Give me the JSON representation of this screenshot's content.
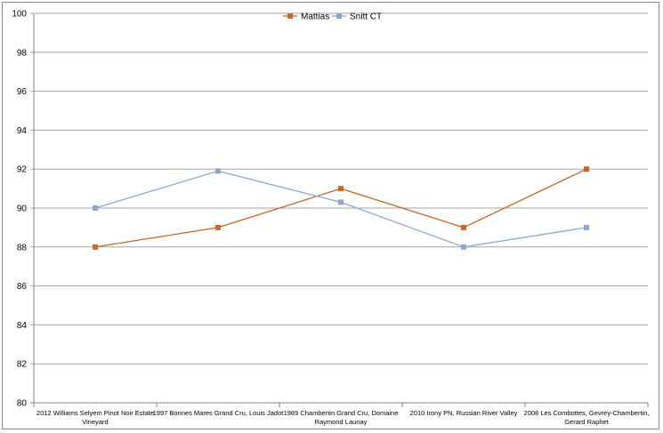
{
  "chart_data": {
    "type": "line",
    "categories": [
      [
        "2012 Williams Selyem Pinot Noir Estate",
        "Vineyard"
      ],
      [
        "1997 Bonnes Mares Grand Cru, Louis Jadot"
      ],
      [
        "1989 Chambertin Grand Cru, Domaine",
        "Raymond Launay"
      ],
      [
        "2010 Irony PN, Russian River Valley"
      ],
      [
        "2008 Les Combottes, Gevrey-Chambertin,",
        "Gerard Raphet"
      ]
    ],
    "series": [
      {
        "name": "Mattias",
        "color": "#c0692f",
        "marker_color": "#c8692a",
        "values": [
          88,
          89,
          91,
          89,
          92
        ]
      },
      {
        "name": "Snitt CT",
        "color": "#8faad0",
        "marker_color": "#8ea6cc",
        "values": [
          90,
          91.9,
          90.3,
          88,
          89
        ]
      }
    ],
    "ylim": [
      80,
      100
    ],
    "yticks": [
      "80",
      "82",
      "84",
      "86",
      "88",
      "90",
      "92",
      "94",
      "96",
      "98",
      "100"
    ],
    "title": "",
    "xlabel": "",
    "ylabel": "",
    "grid": true,
    "legend_position": "top-center"
  }
}
